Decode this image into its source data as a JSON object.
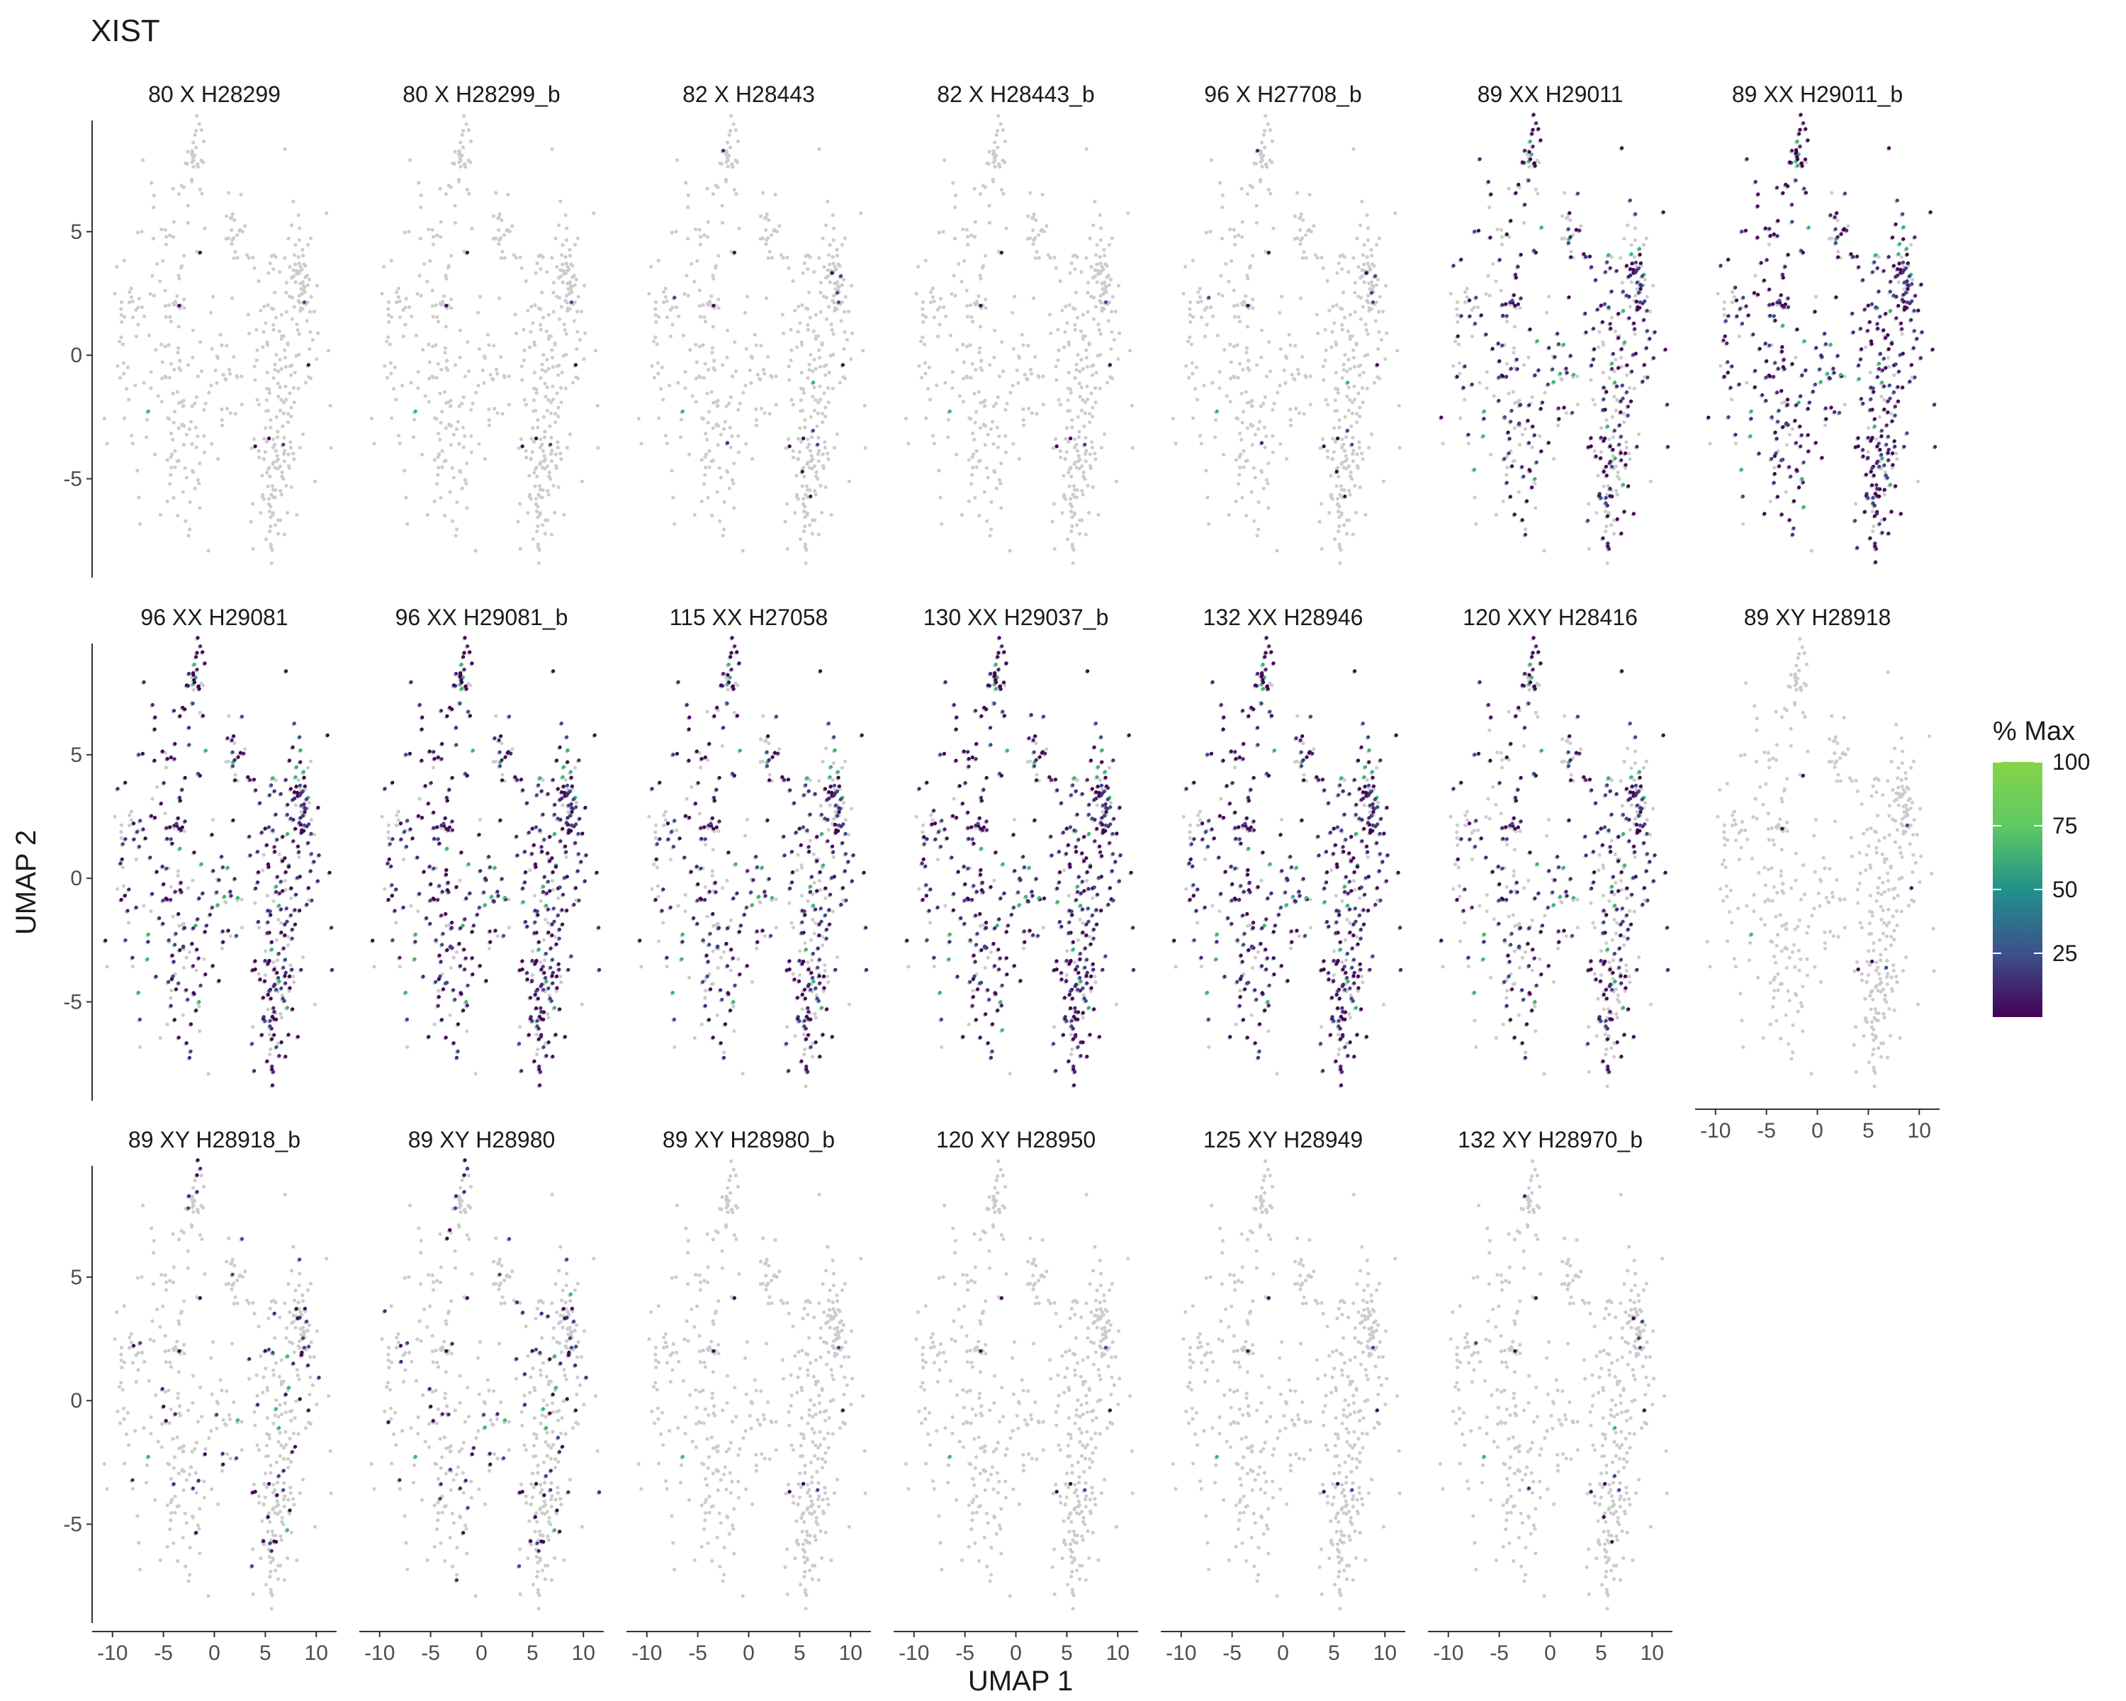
{
  "chart_data": {
    "type": "scatter",
    "title": "XIST",
    "xlabel": "UMAP 1",
    "ylabel": "UMAP 2",
    "xlim": [
      -12,
      12
    ],
    "ylim": [
      -9,
      9.5
    ],
    "x_ticks": [
      -10,
      -5,
      0,
      5,
      10
    ],
    "y_ticks": [
      -5,
      0,
      5
    ],
    "x_tick_labels": [
      "-10",
      "-5",
      "0",
      "5",
      "10"
    ],
    "y_tick_labels": [
      "-5",
      "0",
      "5"
    ],
    "grid": false,
    "background_color": "#cccccc",
    "colorscale": "viridis",
    "legend": {
      "title": "% Max",
      "position": "right",
      "min": 0,
      "max": 100,
      "ticks": [
        25,
        50,
        75,
        100
      ],
      "tick_labels": [
        "25",
        "50",
        "75",
        "100"
      ]
    },
    "panels": [
      {
        "title": "80 X H28299",
        "expression": 0.02
      },
      {
        "title": "80 X H28299_b",
        "expression": 0.02
      },
      {
        "title": "82 X H28443",
        "expression": 0.03
      },
      {
        "title": "82 X H28443_b",
        "expression": 0.02
      },
      {
        "title": "96 X H27708_b",
        "expression": 0.03
      },
      {
        "title": "89 XX H29011",
        "expression": 0.55
      },
      {
        "title": "89 XX H29011_b",
        "expression": 0.82
      },
      {
        "title": "96 XX H29081",
        "expression": 0.7
      },
      {
        "title": "96 XX H29081_b",
        "expression": 0.8
      },
      {
        "title": "115 XX H27058",
        "expression": 0.62
      },
      {
        "title": "130 XX H29037_b",
        "expression": 0.85
      },
      {
        "title": "132 XX H28946",
        "expression": 0.8
      },
      {
        "title": "120 XXY H28416",
        "expression": 0.55
      },
      {
        "title": "89 XY H28918",
        "expression": 0.02
      },
      {
        "title": "89 XY H28918_b",
        "expression": 0.12
      },
      {
        "title": "89 XY H28980",
        "expression": 0.16
      },
      {
        "title": "89 XY H28980_b",
        "expression": 0.02
      },
      {
        "title": "120 XY H28950",
        "expression": 0.02
      },
      {
        "title": "125 XY H28949",
        "expression": 0.02
      },
      {
        "title": "132 XY H28970_b",
        "expression": 0.03
      }
    ]
  }
}
